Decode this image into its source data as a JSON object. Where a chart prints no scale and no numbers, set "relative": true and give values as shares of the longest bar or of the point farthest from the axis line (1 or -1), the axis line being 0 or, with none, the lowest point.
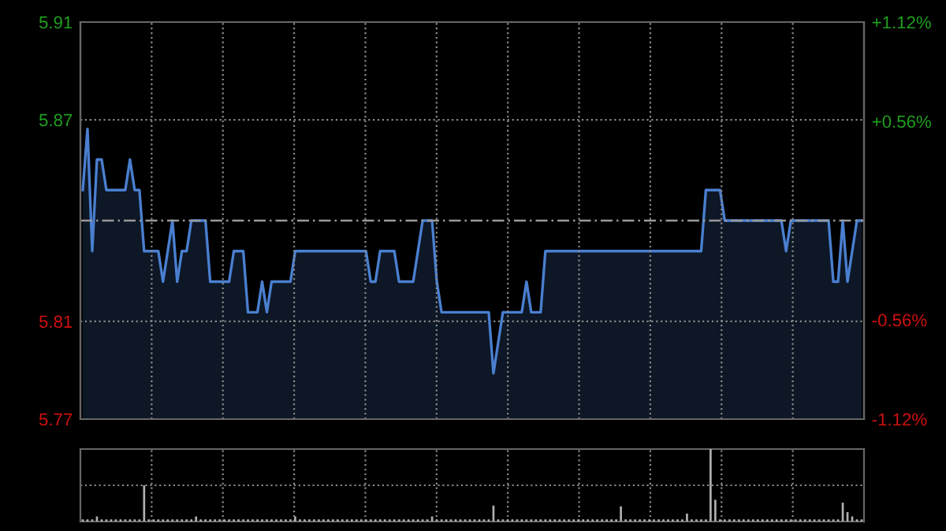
{
  "chart_data": [
    {
      "type": "area",
      "categories": [
        null,
        null,
        null,
        null,
        null,
        null,
        null,
        null,
        null,
        null,
        null,
        null,
        null,
        null,
        null,
        null,
        null,
        null,
        null,
        null,
        null,
        null,
        null,
        null,
        null,
        null,
        null,
        null,
        null,
        null,
        null,
        null,
        null,
        null,
        null,
        null,
        null,
        null,
        null,
        null,
        null,
        null,
        null,
        null,
        null,
        null,
        null,
        null,
        null,
        null,
        null,
        null,
        null,
        null,
        null,
        null,
        null,
        null,
        null,
        null,
        null,
        null,
        null,
        null,
        null,
        null,
        null,
        null,
        null,
        null,
        null,
        null,
        null,
        null,
        null,
        null,
        null,
        null,
        null,
        null,
        null,
        null,
        null,
        null,
        null,
        null,
        null,
        null,
        null,
        null,
        null,
        null,
        null,
        null,
        null,
        null,
        null,
        null,
        null,
        null,
        null,
        null,
        null,
        null,
        null,
        null,
        null,
        null,
        null,
        null,
        null,
        null,
        null,
        null,
        null,
        null,
        null,
        null,
        null,
        null,
        null,
        null,
        null,
        null,
        null,
        null,
        null,
        null,
        null,
        null,
        null,
        null,
        null,
        null,
        null,
        null,
        null,
        null,
        null,
        null,
        null,
        null,
        null,
        null,
        null,
        null,
        null,
        null,
        null,
        null,
        null,
        null,
        null,
        null,
        null,
        null,
        null,
        null,
        null,
        null,
        null,
        null,
        null,
        null,
        null,
        null
      ],
      "series": [
        {
          "color": "#4a7fd0",
          "values": [
            5.85,
            5.87,
            5.83,
            5.86,
            5.86,
            5.85,
            5.85,
            5.85,
            5.85,
            5.85,
            5.86,
            5.85,
            5.85,
            5.83,
            5.83,
            5.83,
            5.83,
            5.82,
            5.83,
            5.84,
            5.82,
            5.83,
            5.83,
            5.84,
            5.84,
            5.84,
            5.84,
            5.82,
            5.82,
            5.82,
            5.82,
            5.82,
            5.83,
            5.83,
            5.83,
            5.81,
            5.81,
            5.81,
            5.82,
            5.81,
            5.82,
            5.82,
            5.82,
            5.82,
            5.82,
            5.83,
            5.83,
            5.83,
            5.83,
            5.83,
            5.83,
            5.83,
            5.83,
            5.83,
            5.83,
            5.83,
            5.83,
            5.83,
            5.83,
            5.83,
            5.83,
            5.82,
            5.82,
            5.83,
            5.83,
            5.83,
            5.83,
            5.82,
            5.82,
            5.82,
            5.82,
            5.83,
            5.84,
            5.84,
            5.84,
            5.82,
            5.81,
            5.81,
            5.81,
            5.81,
            5.81,
            5.81,
            5.81,
            5.81,
            5.81,
            5.81,
            5.81,
            5.79,
            5.8,
            5.81,
            5.81,
            5.81,
            5.81,
            5.81,
            5.82,
            5.81,
            5.81,
            5.81,
            5.83,
            5.83,
            5.83,
            5.83,
            5.83,
            5.83,
            5.83,
            5.83,
            5.83,
            5.83,
            5.83,
            5.83,
            5.83,
            5.83,
            5.83,
            5.83,
            5.83,
            5.83,
            5.83,
            5.83,
            5.83,
            5.83,
            5.83,
            5.83,
            5.83,
            5.83,
            5.83,
            5.83,
            5.83,
            5.83,
            5.83,
            5.83,
            5.83,
            5.83,
            5.85,
            5.85,
            5.85,
            5.85,
            5.84,
            5.84,
            5.84,
            5.84,
            5.84,
            5.84,
            5.84,
            5.84,
            5.84,
            5.84,
            5.84,
            5.84,
            5.84,
            5.83,
            5.84,
            5.84,
            5.84,
            5.84,
            5.84,
            5.84,
            5.84,
            5.84,
            5.84,
            5.82,
            5.82,
            5.84,
            5.82,
            5.83,
            5.84,
            5.84
          ]
        }
      ],
      "ylim": [
        5.775,
        5.905
      ],
      "yticks": [
        {
          "value": 5.905,
          "label": "5.91"
        },
        {
          "value": 5.873,
          "label": "5.87"
        },
        {
          "value": 5.807,
          "label": "5.81"
        },
        {
          "value": 5.775,
          "label": "5.77"
        }
      ],
      "y2lim": [
        -1.12,
        1.12
      ],
      "y2ticks": [
        {
          "value": 1.12,
          "label": "+1.12%"
        },
        {
          "value": 0.56,
          "label": "+0.56%"
        },
        {
          "value": -0.56,
          "label": "-0.56%"
        },
        {
          "value": -1.12,
          "label": "-1.12%"
        }
      ],
      "ref_lines": [
        {
          "axis": "y",
          "value": 5.84,
          "line_style": "dashed"
        }
      ],
      "grid": true,
      "legend": false
    },
    {
      "type": "bar",
      "relative": true,
      "grid": true,
      "legend": false,
      "categories": [
        null,
        null,
        null,
        null,
        null,
        null,
        null,
        null,
        null,
        null,
        null,
        null,
        null,
        null,
        null,
        null,
        null,
        null,
        null,
        null,
        null,
        null,
        null,
        null,
        null,
        null,
        null,
        null,
        null,
        null,
        null,
        null,
        null,
        null,
        null,
        null,
        null,
        null,
        null,
        null,
        null,
        null,
        null,
        null,
        null,
        null,
        null,
        null,
        null,
        null,
        null,
        null,
        null,
        null,
        null,
        null,
        null,
        null,
        null,
        null,
        null,
        null,
        null,
        null,
        null,
        null,
        null,
        null,
        null,
        null,
        null,
        null,
        null,
        null,
        null,
        null,
        null,
        null,
        null,
        null,
        null,
        null,
        null,
        null,
        null,
        null,
        null,
        null,
        null,
        null,
        null,
        null,
        null,
        null,
        null,
        null,
        null,
        null,
        null,
        null,
        null,
        null,
        null,
        null,
        null,
        null,
        null,
        null,
        null,
        null,
        null,
        null,
        null,
        null,
        null,
        null,
        null,
        null,
        null,
        null,
        null,
        null,
        null,
        null,
        null,
        null,
        null,
        null,
        null,
        null,
        null,
        null,
        null,
        null,
        null,
        null,
        null,
        null,
        null,
        null,
        null,
        null,
        null,
        null,
        null,
        null,
        null,
        null,
        null,
        null,
        null,
        null,
        null,
        null,
        null,
        null,
        null,
        null,
        null,
        null,
        null,
        null,
        null,
        null,
        null,
        null
      ],
      "series": [
        {
          "color": "#b0b0b0",
          "values": [
            0.03,
            0.03,
            0.03,
            0.07,
            0.03,
            0.03,
            0.03,
            0.03,
            0.03,
            0.03,
            0.03,
            0.03,
            0.03,
            0.5,
            0.03,
            0.03,
            0.03,
            0.03,
            0.03,
            0.03,
            0.03,
            0.03,
            0.03,
            0.03,
            0.07,
            0.03,
            0.03,
            0.03,
            0.03,
            0.03,
            0.03,
            0.03,
            0.03,
            0.03,
            0.03,
            0.03,
            0.03,
            0.03,
            0.03,
            0.03,
            0.03,
            0.03,
            0.03,
            0.03,
            0.03,
            0.07,
            0.03,
            0.03,
            0.03,
            0.03,
            0.03,
            0.03,
            0.03,
            0.03,
            0.03,
            0.03,
            0.03,
            0.03,
            0.03,
            0.03,
            0.03,
            0.03,
            0.03,
            0.03,
            0.03,
            0.03,
            0.03,
            0.03,
            0.03,
            0.03,
            0.03,
            0.03,
            0.03,
            0.03,
            0.07,
            0.03,
            0.03,
            0.03,
            0.03,
            0.03,
            0.03,
            0.03,
            0.03,
            0.03,
            0.03,
            0.03,
            0.03,
            0.22,
            0.03,
            0.03,
            0.03,
            0.03,
            0.03,
            0.03,
            0.03,
            0.03,
            0.03,
            0.03,
            0.03,
            0.03,
            0.03,
            0.03,
            0.03,
            0.03,
            0.03,
            0.03,
            0.03,
            0.03,
            0.03,
            0.03,
            0.03,
            0.03,
            0.03,
            0.03,
            0.21,
            0.03,
            0.03,
            0.03,
            0.03,
            0.03,
            0.03,
            0.03,
            0.03,
            0.03,
            0.03,
            0.03,
            0.03,
            0.03,
            0.11,
            0.03,
            0.03,
            0.03,
            0.03,
            1.0,
            0.3,
            0.03,
            0.03,
            0.03,
            0.03,
            0.03,
            0.03,
            0.03,
            0.03,
            0.03,
            0.03,
            0.03,
            0.03,
            0.03,
            0.03,
            0.03,
            0.03,
            0.03,
            0.03,
            0.03,
            0.03,
            0.03,
            0.03,
            0.03,
            0.03,
            0.03,
            0.03,
            0.26,
            0.13,
            0.07,
            0.03,
            0.03
          ]
        }
      ]
    }
  ]
}
